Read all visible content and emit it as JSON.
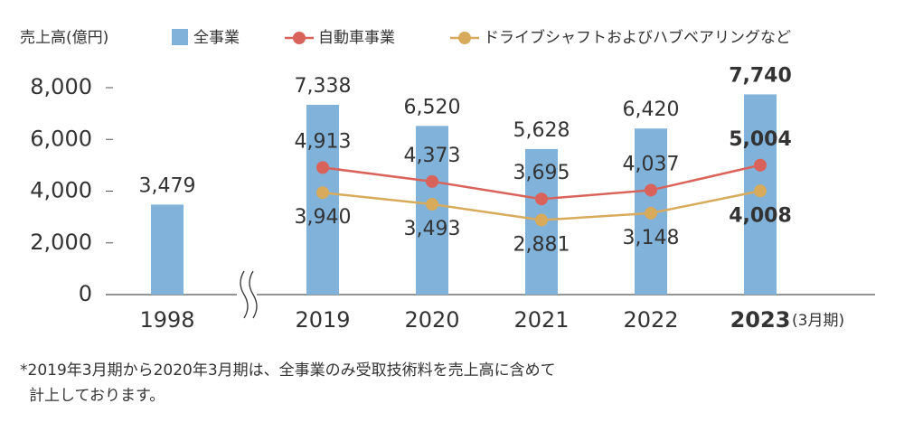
{
  "chart_data": {
    "type": "bar_line",
    "y_label": "売上高(億円)",
    "categories": [
      "1998",
      "2019",
      "2020",
      "2021",
      "2022",
      "2023"
    ],
    "x_unit_label": "(3月期)",
    "ylim": [
      0,
      8000
    ],
    "yticks": [
      0,
      {
        "value": 2000,
        "label": "2,000"
      },
      {
        "value": 4000,
        "label": "4,000"
      },
      {
        "value": 6000,
        "label": "6,000"
      },
      {
        "value": 8000,
        "label": "8,000"
      }
    ],
    "axis_break": true,
    "series": [
      {
        "name": "全事業",
        "kind": "bar",
        "color": "#80b2da",
        "values": [
          3479,
          7338,
          6520,
          5628,
          6420,
          7740
        ],
        "value_labels": [
          "3,479",
          "7,338",
          "6,520",
          "5,628",
          "6,420",
          "7,740"
        ]
      },
      {
        "name": "自動車事業",
        "kind": "line",
        "color": "#d9635b",
        "values": [
          null,
          4913,
          4373,
          3695,
          4037,
          5004
        ],
        "value_labels": [
          null,
          "4,913",
          "4,373",
          "3,695",
          "4,037",
          "5,004"
        ]
      },
      {
        "name": "ドライブシャフトおよびハブベアリングなど",
        "kind": "line",
        "color": "#d8aa5c",
        "values": [
          null,
          3940,
          3493,
          2881,
          3148,
          4008
        ],
        "value_labels": [
          null,
          "3,940",
          "3,493",
          "2,881",
          "3,148",
          "4,008"
        ]
      }
    ],
    "footnote": [
      "*2019年3月期から2020年3月期は、全事業のみ受取技術料を売上高に含めて",
      "計上しております。"
    ]
  }
}
